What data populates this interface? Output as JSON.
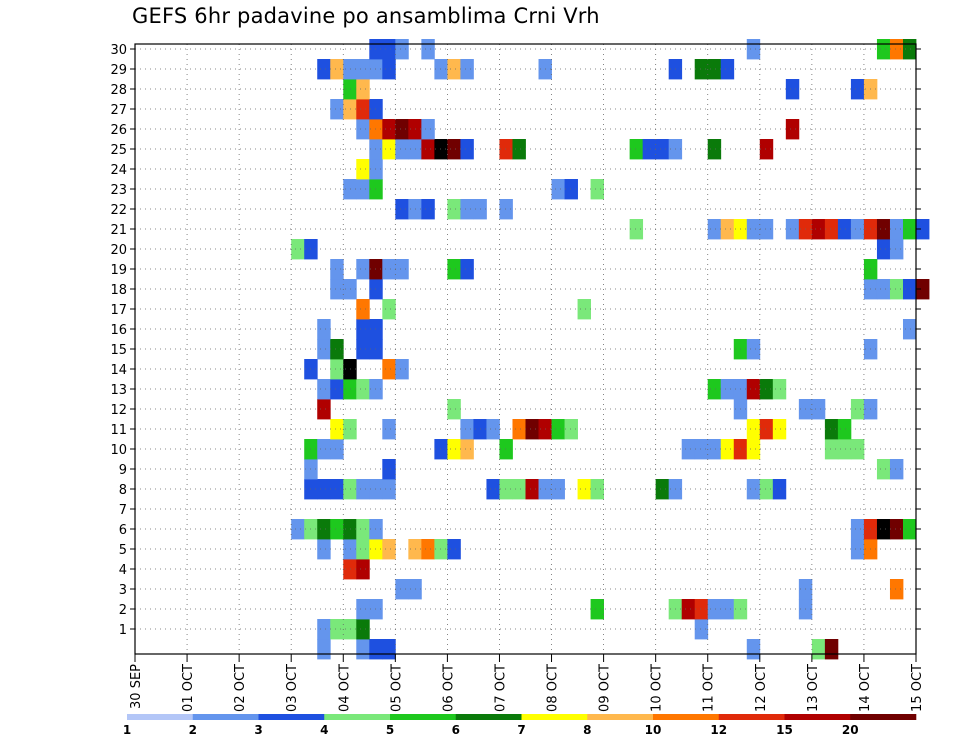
{
  "chart_data": {
    "type": "heatmap",
    "title": "GEFS 6hr padavine po ansamblima Crni Vrh",
    "x_ticks": [
      "30 SEP",
      "01 OCT",
      "02 OCT",
      "03 OCT",
      "04 OCT",
      "05 OCT",
      "06 OCT",
      "07 OCT",
      "08 OCT",
      "09 OCT",
      "10 OCT",
      "11 OCT",
      "12 OCT",
      "13 OCT",
      "14 OCT",
      "15 OCT"
    ],
    "y_ticks": [
      "1",
      "2",
      "3",
      "4",
      "5",
      "6",
      "7",
      "8",
      "9",
      "10",
      "11",
      "12",
      "13",
      "14",
      "15",
      "16",
      "17",
      "18",
      "19",
      "20",
      "21",
      "22",
      "23",
      "24",
      "25",
      "26",
      "27",
      "28",
      "29",
      "30"
    ],
    "ylim": [
      0,
      30
    ],
    "steps_per_day": 4,
    "grid": true,
    "colorbar": {
      "labels": [
        "1",
        "2",
        "3",
        "4",
        "5",
        "6",
        "7",
        "8",
        "10",
        "12",
        "15",
        "20"
      ],
      "colors": [
        "#b3c6f7",
        "#6495ed",
        "#1e50e0",
        "#7ae87a",
        "#1ec81e",
        "#0a7a0a",
        "#ffff00",
        "#ffb84d",
        "#ff7700",
        "#e02a0a",
        "#b00000",
        "#700000"
      ]
    },
    "cells": [
      [
        0,
        14,
        1
      ],
      [
        0,
        17,
        1
      ],
      [
        0,
        18,
        2
      ],
      [
        0,
        19,
        2
      ],
      [
        0,
        47,
        1
      ],
      [
        0,
        52,
        3
      ],
      [
        0,
        53,
        11
      ],
      [
        1,
        14,
        1
      ],
      [
        1,
        15,
        3
      ],
      [
        1,
        16,
        3
      ],
      [
        1,
        17,
        5
      ],
      [
        1,
        43,
        1
      ],
      [
        2,
        17,
        1
      ],
      [
        2,
        18,
        1
      ],
      [
        2,
        35,
        4
      ],
      [
        2,
        41,
        3
      ],
      [
        2,
        42,
        10
      ],
      [
        2,
        43,
        9
      ],
      [
        2,
        44,
        1
      ],
      [
        2,
        45,
        1
      ],
      [
        2,
        46,
        3
      ],
      [
        2,
        51,
        1
      ],
      [
        3,
        20,
        1
      ],
      [
        3,
        21,
        1
      ],
      [
        3,
        51,
        1
      ],
      [
        3,
        58,
        8
      ],
      [
        4,
        16,
        9
      ],
      [
        4,
        17,
        10
      ],
      [
        5,
        14,
        1
      ],
      [
        5,
        16,
        1
      ],
      [
        5,
        17,
        3
      ],
      [
        5,
        18,
        6
      ],
      [
        5,
        19,
        7
      ],
      [
        5,
        21,
        7
      ],
      [
        5,
        22,
        8
      ],
      [
        5,
        23,
        3
      ],
      [
        5,
        24,
        2
      ],
      [
        5,
        55,
        1
      ],
      [
        5,
        56,
        8
      ],
      [
        6,
        12,
        1
      ],
      [
        6,
        13,
        3
      ],
      [
        6,
        14,
        5
      ],
      [
        6,
        15,
        4
      ],
      [
        6,
        16,
        5
      ],
      [
        6,
        17,
        3
      ],
      [
        6,
        18,
        1
      ],
      [
        6,
        55,
        1
      ],
      [
        6,
        56,
        9
      ],
      [
        6,
        57,
        12
      ],
      [
        6,
        58,
        11
      ],
      [
        6,
        59,
        4
      ],
      [
        8,
        13,
        2
      ],
      [
        8,
        14,
        2
      ],
      [
        8,
        15,
        2
      ],
      [
        8,
        16,
        3
      ],
      [
        8,
        17,
        1
      ],
      [
        8,
        18,
        1
      ],
      [
        8,
        19,
        1
      ],
      [
        8,
        27,
        2
      ],
      [
        8,
        28,
        3
      ],
      [
        8,
        29,
        3
      ],
      [
        8,
        30,
        10
      ],
      [
        8,
        31,
        1
      ],
      [
        8,
        32,
        1
      ],
      [
        8,
        34,
        6
      ],
      [
        8,
        35,
        3
      ],
      [
        8,
        40,
        5
      ],
      [
        8,
        41,
        1
      ],
      [
        8,
        47,
        1
      ],
      [
        8,
        48,
        3
      ],
      [
        8,
        49,
        2
      ],
      [
        9,
        13,
        1
      ],
      [
        9,
        19,
        2
      ],
      [
        9,
        57,
        3
      ],
      [
        9,
        58,
        1
      ],
      [
        10,
        13,
        4
      ],
      [
        10,
        14,
        1
      ],
      [
        10,
        15,
        1
      ],
      [
        10,
        23,
        2
      ],
      [
        10,
        24,
        6
      ],
      [
        10,
        25,
        7
      ],
      [
        10,
        28,
        4
      ],
      [
        10,
        42,
        1
      ],
      [
        10,
        43,
        1
      ],
      [
        10,
        44,
        1
      ],
      [
        10,
        45,
        6
      ],
      [
        10,
        46,
        9
      ],
      [
        10,
        47,
        6
      ],
      [
        10,
        53,
        3
      ],
      [
        10,
        54,
        3
      ],
      [
        10,
        55,
        3
      ],
      [
        11,
        15,
        6
      ],
      [
        11,
        16,
        3
      ],
      [
        11,
        19,
        1
      ],
      [
        11,
        25,
        1
      ],
      [
        11,
        26,
        2
      ],
      [
        11,
        27,
        1
      ],
      [
        11,
        29,
        8
      ],
      [
        11,
        30,
        11
      ],
      [
        11,
        31,
        10
      ],
      [
        11,
        32,
        4
      ],
      [
        11,
        33,
        3
      ],
      [
        11,
        47,
        6
      ],
      [
        11,
        48,
        9
      ],
      [
        11,
        49,
        6
      ],
      [
        11,
        53,
        5
      ],
      [
        11,
        54,
        4
      ],
      [
        12,
        14,
        10
      ],
      [
        12,
        24,
        3
      ],
      [
        12,
        46,
        1
      ],
      [
        12,
        51,
        1
      ],
      [
        12,
        52,
        1
      ],
      [
        12,
        55,
        3
      ],
      [
        12,
        56,
        1
      ],
      [
        13,
        14,
        1
      ],
      [
        13,
        15,
        2
      ],
      [
        13,
        16,
        4
      ],
      [
        13,
        17,
        3
      ],
      [
        13,
        18,
        1
      ],
      [
        13,
        44,
        4
      ],
      [
        13,
        45,
        1
      ],
      [
        13,
        46,
        1
      ],
      [
        13,
        47,
        10
      ],
      [
        13,
        48,
        5
      ],
      [
        13,
        49,
        3
      ],
      [
        14,
        13,
        2
      ],
      [
        14,
        15,
        3
      ],
      [
        14,
        16,
        12
      ],
      [
        14,
        19,
        8
      ],
      [
        14,
        20,
        1
      ],
      [
        15,
        14,
        1
      ],
      [
        15,
        15,
        5
      ],
      [
        15,
        17,
        2
      ],
      [
        15,
        18,
        2
      ],
      [
        15,
        46,
        4
      ],
      [
        15,
        47,
        1
      ],
      [
        15,
        56,
        1
      ],
      [
        16,
        14,
        1
      ],
      [
        16,
        17,
        2
      ],
      [
        16,
        18,
        2
      ],
      [
        16,
        59,
        1
      ],
      [
        17,
        17,
        8
      ],
      [
        17,
        19,
        3
      ],
      [
        17,
        34,
        3
      ],
      [
        18,
        15,
        1
      ],
      [
        18,
        16,
        1
      ],
      [
        18,
        18,
        2
      ],
      [
        18,
        56,
        1
      ],
      [
        18,
        57,
        1
      ],
      [
        18,
        58,
        3
      ],
      [
        18,
        59,
        2
      ],
      [
        18,
        60,
        11
      ],
      [
        19,
        15,
        1
      ],
      [
        19,
        17,
        1
      ],
      [
        19,
        18,
        11
      ],
      [
        19,
        19,
        1
      ],
      [
        19,
        20,
        1
      ],
      [
        19,
        24,
        4
      ],
      [
        19,
        25,
        2
      ],
      [
        19,
        56,
        4
      ],
      [
        20,
        12,
        3
      ],
      [
        20,
        13,
        2
      ],
      [
        20,
        57,
        2
      ],
      [
        20,
        58,
        1
      ],
      [
        21,
        38,
        3
      ],
      [
        21,
        44,
        1
      ],
      [
        21,
        45,
        7
      ],
      [
        21,
        46,
        6
      ],
      [
        21,
        47,
        1
      ],
      [
        21,
        48,
        1
      ],
      [
        21,
        50,
        1
      ],
      [
        21,
        51,
        9
      ],
      [
        21,
        52,
        10
      ],
      [
        21,
        53,
        9
      ],
      [
        21,
        54,
        2
      ],
      [
        21,
        55,
        1
      ],
      [
        21,
        56,
        9
      ],
      [
        21,
        57,
        11
      ],
      [
        21,
        58,
        1
      ],
      [
        21,
        59,
        4
      ],
      [
        21,
        60,
        2
      ],
      [
        22,
        20,
        2
      ],
      [
        22,
        21,
        1
      ],
      [
        22,
        22,
        2
      ],
      [
        22,
        24,
        3
      ],
      [
        22,
        25,
        1
      ],
      [
        22,
        26,
        1
      ],
      [
        22,
        28,
        1
      ],
      [
        23,
        16,
        1
      ],
      [
        23,
        17,
        1
      ],
      [
        23,
        18,
        4
      ],
      [
        23,
        32,
        1
      ],
      [
        23,
        33,
        2
      ],
      [
        23,
        35,
        3
      ],
      [
        24,
        17,
        6
      ],
      [
        24,
        18,
        1
      ],
      [
        25,
        18,
        1
      ],
      [
        25,
        19,
        6
      ],
      [
        25,
        20,
        1
      ],
      [
        25,
        21,
        1
      ],
      [
        25,
        22,
        10
      ],
      [
        25,
        23,
        12
      ],
      [
        25,
        24,
        11
      ],
      [
        25,
        25,
        2
      ],
      [
        25,
        28,
        9
      ],
      [
        25,
        29,
        5
      ],
      [
        25,
        38,
        4
      ],
      [
        25,
        39,
        2
      ],
      [
        25,
        40,
        2
      ],
      [
        25,
        41,
        1
      ],
      [
        25,
        44,
        5
      ],
      [
        25,
        48,
        10
      ],
      [
        26,
        17,
        1
      ],
      [
        26,
        18,
        8
      ],
      [
        26,
        19,
        10
      ],
      [
        26,
        20,
        11
      ],
      [
        26,
        21,
        10
      ],
      [
        26,
        22,
        1
      ],
      [
        26,
        50,
        10
      ],
      [
        27,
        15,
        1
      ],
      [
        27,
        16,
        7
      ],
      [
        27,
        17,
        9
      ],
      [
        27,
        18,
        2
      ],
      [
        28,
        16,
        4
      ],
      [
        28,
        17,
        7
      ],
      [
        28,
        50,
        2
      ],
      [
        28,
        55,
        2
      ],
      [
        28,
        56,
        7
      ],
      [
        29,
        14,
        2
      ],
      [
        29,
        15,
        7
      ],
      [
        29,
        16,
        1
      ],
      [
        29,
        17,
        1
      ],
      [
        29,
        18,
        1
      ],
      [
        29,
        19,
        2
      ],
      [
        29,
        23,
        1
      ],
      [
        29,
        24,
        7
      ],
      [
        29,
        25,
        1
      ],
      [
        29,
        31,
        1
      ],
      [
        29,
        41,
        2
      ],
      [
        29,
        43,
        5
      ],
      [
        29,
        44,
        5
      ],
      [
        29,
        45,
        2
      ],
      [
        30,
        18,
        2
      ],
      [
        30,
        19,
        2
      ],
      [
        30,
        20,
        1
      ],
      [
        30,
        22,
        1
      ],
      [
        30,
        47,
        1
      ],
      [
        30,
        57,
        4
      ],
      [
        30,
        58,
        8
      ],
      [
        30,
        59,
        5
      ]
    ]
  }
}
